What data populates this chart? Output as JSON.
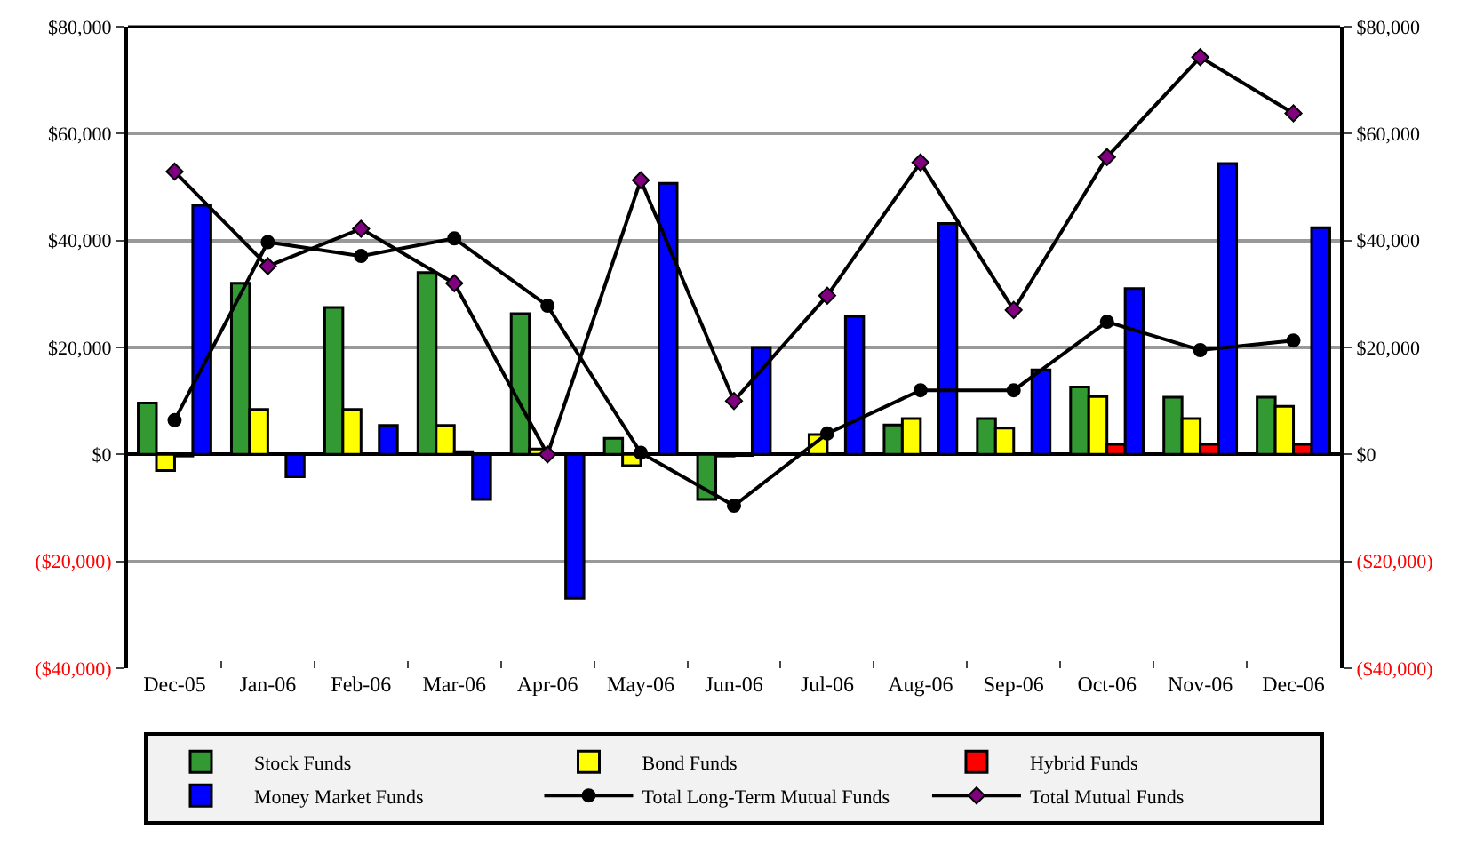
{
  "chart_data": {
    "type": "bar",
    "categories": [
      "Dec-05",
      "Jan-06",
      "Feb-06",
      "Mar-06",
      "Apr-06",
      "May-06",
      "Jun-06",
      "Jul-06",
      "Aug-06",
      "Sep-06",
      "Oct-06",
      "Nov-06",
      "Dec-06"
    ],
    "series": [
      {
        "name": "Stock Funds",
        "color": "#339933",
        "values": [
          9600,
          32000,
          27500,
          34000,
          26300,
          3000,
          -8400,
          null,
          5500,
          6700,
          12600,
          10700,
          10700
        ]
      },
      {
        "name": "Bond Funds",
        "color": "#ffff00",
        "values": [
          -3000,
          8400,
          8400,
          5400,
          1000,
          -2100,
          -300,
          3700,
          6700,
          4900,
          10800,
          6700,
          9000
        ]
      },
      {
        "name": "Hybrid Funds",
        "color": "#ff0000",
        "values": [
          -300,
          null,
          null,
          500,
          null,
          null,
          -200,
          null,
          null,
          null,
          1900,
          1900,
          1900
        ]
      },
      {
        "name": "Money Market Funds",
        "color": "#0000ff",
        "values": [
          46600,
          -4200,
          5400,
          -8400,
          -26900,
          50700,
          20000,
          25800,
          43200,
          15800,
          31000,
          54400,
          42400
        ]
      },
      {
        "name": "Total Long-Term Mutual Funds",
        "type": "line",
        "marker": "circle",
        "color": "#000000",
        "values": [
          6400,
          39700,
          37100,
          40400,
          27800,
          300,
          -9600,
          3900,
          12000,
          12000,
          24800,
          19500,
          21300
        ]
      },
      {
        "name": "Total Mutual Funds",
        "type": "line",
        "marker": "diamond",
        "color": "#800080",
        "values": [
          52900,
          35200,
          42200,
          32000,
          0,
          51300,
          10000,
          29700,
          54600,
          27000,
          55600,
          74300,
          63800
        ]
      }
    ],
    "ylim": [
      -40000,
      80000
    ],
    "yticks": [
      {
        "value": -40000,
        "label": "($40,000)"
      },
      {
        "value": -20000,
        "label": "($20,000)"
      },
      {
        "value": 0,
        "label": "$0"
      },
      {
        "value": 20000,
        "label": "$20,000"
      },
      {
        "value": 40000,
        "label": "$40,000"
      },
      {
        "value": 60000,
        "label": "$60,000"
      },
      {
        "value": 80000,
        "label": "$80,000"
      }
    ],
    "y2lim": [
      -40000,
      80000
    ],
    "y2ticks": [
      {
        "value": -40000,
        "label": "($40,000)"
      },
      {
        "value": -20000,
        "label": "($20,000)"
      },
      {
        "value": 0,
        "label": "$0"
      },
      {
        "value": 20000,
        "label": "$20,000"
      },
      {
        "value": 40000,
        "label": "$40,000"
      },
      {
        "value": 60000,
        "label": "$60,000"
      },
      {
        "value": 80000,
        "label": "$80,000"
      }
    ],
    "grid": "y",
    "legend": "bottom",
    "line_style": "solid"
  }
}
